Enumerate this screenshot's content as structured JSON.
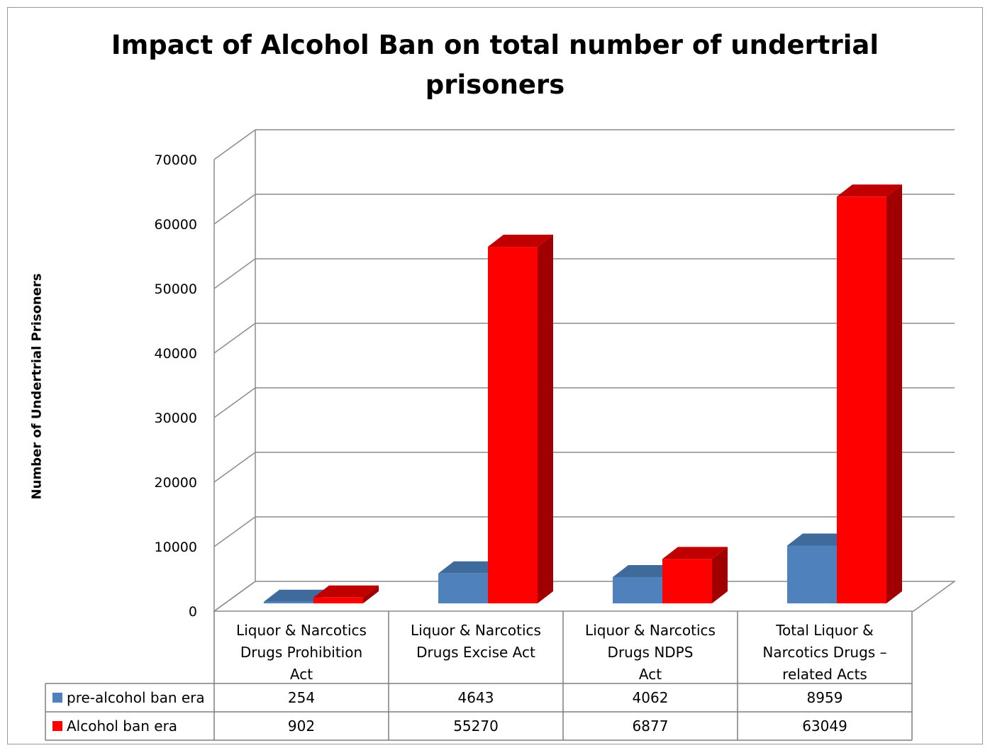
{
  "chart_data": {
    "type": "bar",
    "title": "Impact of Alcohol Ban on total number of undertrial prisoners",
    "ylabel": "Number of Undertrial Prisoners",
    "ylim": [
      0,
      70000
    ],
    "yticks": [
      "0",
      "10000",
      "20000",
      "30000",
      "40000",
      "50000",
      "60000",
      "70000"
    ],
    "grid": true,
    "legend": "data-table",
    "categories": [
      "Liquor & Narcotics Drugs Prohibition Act",
      "Liquor & Narcotics Drugs Excise Act",
      "Liquor & Narcotics Drugs NDPS Act",
      "Total Liquor & Narcotics Drugs – related Acts"
    ],
    "category_lines": [
      [
        "Liquor & Narcotics",
        "Drugs Prohibition",
        "Act"
      ],
      [
        "Liquor & Narcotics",
        "Drugs Excise Act"
      ],
      [
        "Liquor & Narcotics",
        "Drugs NDPS",
        "Act"
      ],
      [
        "Total Liquor &",
        "Narcotics Drugs –",
        "related Acts"
      ]
    ],
    "series": [
      {
        "name": "pre-alcohol ban era",
        "values": [
          254,
          4643,
          4062,
          8959
        ],
        "color": "#4f81bd",
        "side_color": "#3a6190",
        "top_color": "#3f6a9c"
      },
      {
        "name": "Alcohol ban era",
        "values": [
          902,
          55270,
          6877,
          63049
        ],
        "color": "#ff0000",
        "side_color": "#a00000",
        "top_color": "#c00000"
      }
    ]
  }
}
